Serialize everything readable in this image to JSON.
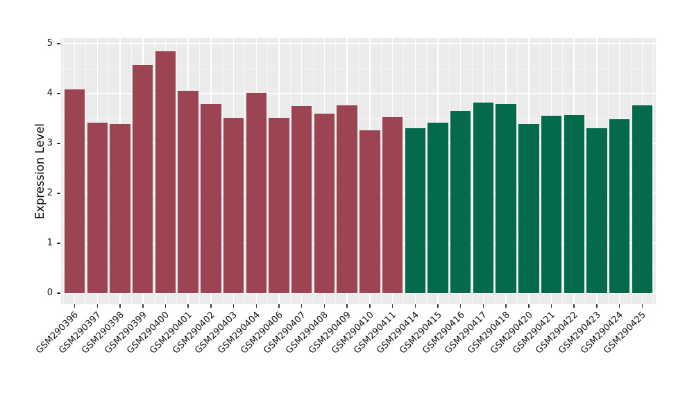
{
  "chart_data": {
    "type": "bar",
    "title": "",
    "xlabel": "",
    "ylabel": "Expression Level",
    "ylim": [
      0,
      5
    ],
    "yticks_major": [
      0,
      1,
      2,
      3,
      4,
      5
    ],
    "yticks_minor": [
      0.5,
      1.5,
      2.5,
      3.5,
      4.5
    ],
    "grid": "white major and minor gridlines on gray panel",
    "legend_position": "none",
    "x_tick_rotation_deg": 45,
    "series": [
      {
        "name": "group-1-maroon",
        "color": "#9D4452",
        "samples": [
          "GSM290396",
          "GSM290397",
          "GSM290398",
          "GSM290399",
          "GSM290400",
          "GSM290401",
          "GSM290402",
          "GSM290403",
          "GSM290404",
          "GSM290406",
          "GSM290407",
          "GSM290408",
          "GSM290409",
          "GSM290410",
          "GSM290411"
        ],
        "values": [
          4.09,
          3.42,
          3.39,
          4.57,
          4.85,
          4.06,
          3.79,
          3.52,
          4.02,
          3.52,
          3.75,
          3.6,
          3.76,
          3.26,
          3.53
        ]
      },
      {
        "name": "group-2-green",
        "color": "#046A4B",
        "samples": [
          "GSM290414",
          "GSM290415",
          "GSM290416",
          "GSM290417",
          "GSM290418",
          "GSM290420",
          "GSM290421",
          "GSM290422",
          "GSM290423",
          "GSM290424",
          "GSM290425"
        ],
        "values": [
          3.3,
          3.41,
          3.65,
          3.82,
          3.79,
          3.39,
          3.56,
          3.57,
          3.31,
          3.48,
          3.76
        ]
      }
    ],
    "style": {
      "figure_background": "#FFFFFF",
      "panel_background": "#EBEBEB",
      "grid_color": "#FFFFFF",
      "tick_color": "#333333",
      "text_color": "#111111"
    }
  }
}
